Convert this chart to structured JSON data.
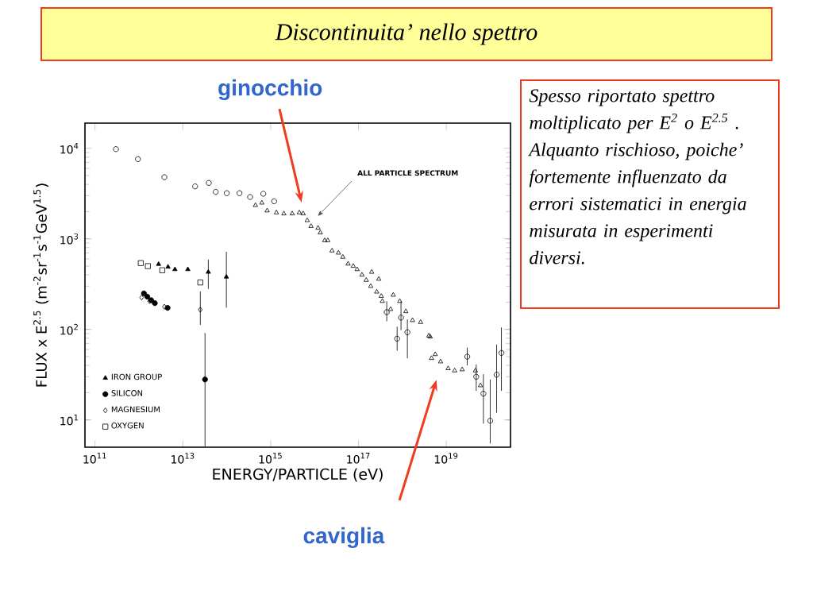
{
  "chart_data": {
    "type": "scatter",
    "title": "Discontinuita’ nello spettro",
    "xlabel": "ENERGY/PARTICLE (eV)",
    "ylabel": "FLUX x E$^{2.5}$ (m$^{-2}$sr$^{-1}$s$^{-1}$GeV$^{1.5}$)",
    "log": "xy",
    "xlim": [
      59000000000.0,
      2.9e+20
    ],
    "ylim": [
      5,
      19000
    ],
    "xticks": [
      {
        "value": 100000000000.0,
        "label": "10$^{11}$"
      },
      {
        "value": 10000000000000.0,
        "label": "10$^{13}$"
      },
      {
        "value": 1000000000000000.0,
        "label": "10$^{15}$"
      },
      {
        "value": 1e+17,
        "label": "10$^{17}$"
      },
      {
        "value": 1e+19,
        "label": "10$^{19}$"
      }
    ],
    "yticks": [
      {
        "value": 10,
        "label": "10$^{1}$"
      },
      {
        "value": 100,
        "label": "10$^{2}$"
      },
      {
        "value": 1000,
        "label": "10$^{3}$"
      },
      {
        "value": 10000,
        "label": "10$^{4}$"
      }
    ],
    "legend": "bottom left",
    "series": [
      {
        "marker": "circle",
        "color": "#000000",
        "x": [
          300000000000.0,
          950000000000.0,
          3800000000000.0,
          19000000000000.0,
          39000000000000.0,
          56000000000000.0,
          100000000000000.0,
          195000000000000.0,
          340000000000000.0,
          680000000000000.0,
          1200000000000000.0,
          4.4e+17,
          9.3e+17,
          7.6e+17,
          1.3e+18,
          3e+19,
          4.8e+19,
          7e+19,
          1e+20,
          1.4e+20,
          1.8e+20
        ],
        "values": [
          9800,
          7600,
          4800,
          3800,
          4150,
          3300,
          3200,
          3200,
          2900,
          3150,
          2600,
          155,
          135,
          79,
          93,
          50,
          30,
          19.5,
          9.8,
          31.6,
          55
        ],
        "errors": [
          null,
          null,
          null,
          null,
          null,
          null,
          null,
          null,
          null,
          null,
          null,
          [
            123,
            205
          ],
          [
            98,
            204
          ],
          [
            58,
            107
          ],
          [
            48,
            129
          ],
          [
            40,
            63
          ],
          [
            21,
            41
          ],
          [
            9.1,
            32
          ],
          [
            5.5,
            28
          ],
          [
            12,
            68
          ],
          [
            21,
            105
          ]
        ]
      },
      {
        "marker": "triangle",
        "color": "#000000",
        "x": [
          450000000000000.0,
          630000000000000.0,
          830000000000000.0,
          1350000000000000.0,
          2000000000000000.0,
          3100000000000000.0,
          4500000000000000.0,
          5500000000000000.0,
          6800000000000000.0,
          8300000000000000.0,
          1.2e+16,
          1.35e+16,
          1.7e+16,
          2e+16,
          2.5e+16,
          3.5e+16,
          4.4e+16,
          5.8e+16,
          7.6e+16,
          9.3e+16,
          1.2e+17,
          1.5e+17,
          1.9e+17,
          2e+17,
          2.6e+17,
          2.9e+17,
          3.3e+17,
          3.5e+17,
          5.4e+17,
          6.2e+17,
          8.7e+17,
          1.2e+18,
          1.7e+18,
          2.6e+18,
          4e+18,
          4.3e+18,
          4.6e+18,
          5.6e+18,
          7.4e+18,
          1.1e+19,
          1.55e+19,
          2.3e+19,
          4.6e+19,
          6e+19
        ],
        "values": [
          2350,
          2500,
          2050,
          1950,
          1900,
          1900,
          1950,
          1900,
          1600,
          1380,
          1320,
          1170,
          960,
          960,
          740,
          700,
          630,
          530,
          500,
          460,
          400,
          350,
          300,
          430,
          260,
          360,
          233,
          205,
          167,
          240,
          205,
          158,
          126,
          120,
          85,
          83,
          48,
          53,
          44,
          37,
          35,
          36,
          35,
          24
        ]
      },
      {
        "name": "IRON GROUP",
        "marker": "triangle",
        "color": "#000000",
        "x": [
          2800000000000.0,
          4600000000000.0,
          6600000000000.0,
          13000000000000.0,
          38000000000000.0,
          98000000000000.0
        ],
        "values": [
          525,
          490,
          460,
          460,
          430,
          380
        ],
        "errors": [
          null,
          null,
          null,
          null,
          [
            280,
            590
          ],
          [
            174,
            720
          ]
        ]
      },
      {
        "name": "SILICON",
        "marker": "circle",
        "color": "#000000",
        "x": [
          1300000000000.0,
          1550000000000.0,
          1900000000000.0,
          2300000000000.0,
          4500000000000.0,
          32000000000000.0
        ],
        "values": [
          250,
          230,
          210,
          195,
          173,
          28
        ],
        "errors": [
          null,
          null,
          null,
          null,
          null,
          [
            5.1,
            91
          ]
        ]
      },
      {
        "name": "MAGNESIUM",
        "marker": "diamond",
        "color": "#000000",
        "x": [
          1150000000000.0,
          1750000000000.0,
          3800000000000.0,
          25000000000000.0
        ],
        "values": [
          225,
          205,
          178,
          165
        ],
        "errors": [
          null,
          null,
          null,
          [
            112,
            263
          ]
        ]
      },
      {
        "name": "OXYGEN",
        "marker": "square",
        "color": "#000000",
        "x": [
          1100000000000.0,
          1600000000000.0,
          3400000000000.0,
          25000000000000.0
        ],
        "values": [
          540,
          500,
          450,
          330
        ]
      }
    ],
    "annotations": [
      "ALL PARTICLE SPECTRUM",
      "ginocchio",
      "caviglia",
      "Spesso riportato spettro moltiplicato per E$^{2}$ o E$^{2.5}$ . Alquanto rischioso, poiche’ fortemente influenzato da errori sistematici in energia misurata in esperimenti diversi."
    ]
  }
}
